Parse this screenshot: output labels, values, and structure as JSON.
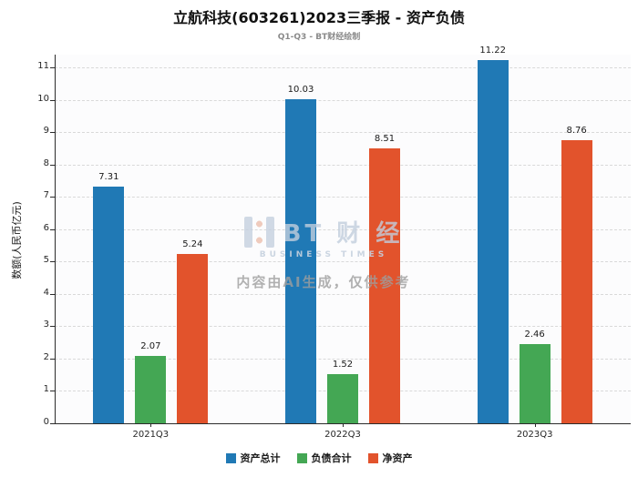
{
  "watermark": {
    "logo_text": "BT 财 经",
    "logo_sub": "BUSINESS TIMES",
    "disclaimer": "内容由AI生成，仅供参考"
  },
  "chart_data": {
    "type": "bar",
    "title": "立航科技(603261)2023三季报 - 资产负债",
    "subtitle": "Q1-Q3 - BT财经绘制",
    "xlabel": "",
    "ylabel": "数额(人民币亿元)",
    "categories": [
      "2021Q3",
      "2022Q3",
      "2023Q3"
    ],
    "series": [
      {
        "name": "资产总计",
        "color": "#2079B5",
        "values": [
          7.31,
          10.03,
          11.22
        ]
      },
      {
        "name": "负债合计",
        "color": "#44A754",
        "values": [
          2.07,
          1.52,
          2.46
        ]
      },
      {
        "name": "净资产",
        "color": "#E2532C",
        "values": [
          5.24,
          8.51,
          8.76
        ]
      }
    ],
    "ylim": [
      0,
      11.4
    ],
    "yticks": [
      0,
      1,
      2,
      3,
      4,
      5,
      6,
      7,
      8,
      9,
      10,
      11
    ],
    "grid": true,
    "grid_style": "dashed",
    "legend_position": "bottom"
  }
}
